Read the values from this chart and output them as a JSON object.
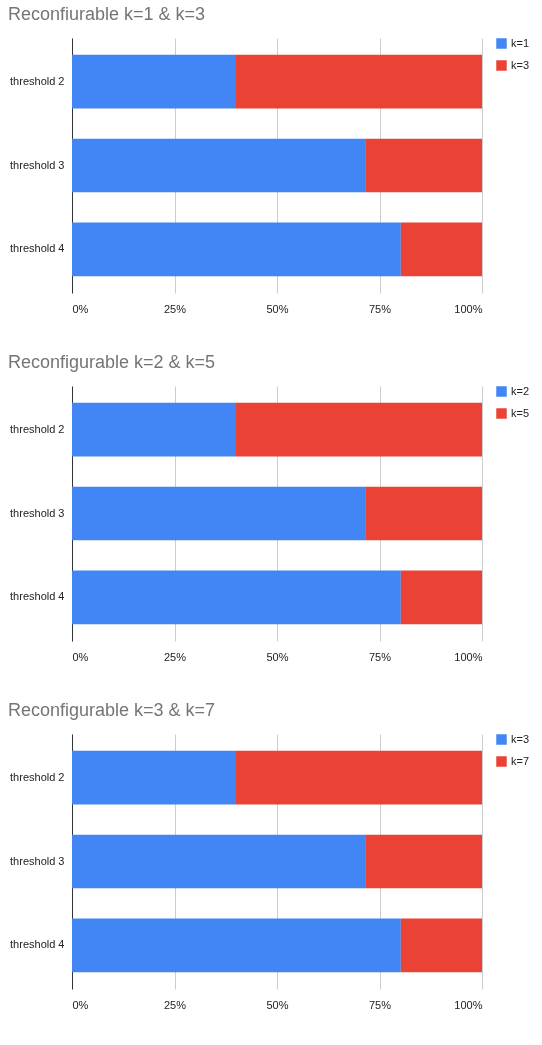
{
  "chart_data": [
    {
      "type": "bar",
      "orientation": "horizontal",
      "stacked": true,
      "title": "Reconfiurable k=1 & k=3",
      "categories": [
        "threshold 2",
        "threshold 3",
        "threshold 4"
      ],
      "series": [
        {
          "name": "k=1",
          "color": "#4285f4",
          "values": [
            40,
            71.5,
            80.2
          ]
        },
        {
          "name": "k=3",
          "color": "#ea4335",
          "values": [
            60,
            28.5,
            19.8
          ]
        }
      ],
      "xlim": [
        0,
        100
      ],
      "xticks": [
        {
          "value": 0,
          "label": "0%"
        },
        {
          "value": 25,
          "label": "25%"
        },
        {
          "value": 50,
          "label": "50%"
        },
        {
          "value": 75,
          "label": "75%"
        },
        {
          "value": 100,
          "label": "100%"
        }
      ],
      "grid": "x",
      "legend": "top right"
    },
    {
      "type": "bar",
      "orientation": "horizontal",
      "stacked": true,
      "title": "Reconfigurable k=2 & k=5",
      "categories": [
        "threshold 2",
        "threshold 3",
        "threshold 4"
      ],
      "series": [
        {
          "name": "k=2",
          "color": "#4285f4",
          "values": [
            40,
            71.5,
            80.2
          ]
        },
        {
          "name": "k=5",
          "color": "#ea4335",
          "values": [
            60,
            28.5,
            19.8
          ]
        }
      ],
      "xlim": [
        0,
        100
      ],
      "xticks": [
        {
          "value": 0,
          "label": "0%"
        },
        {
          "value": 25,
          "label": "25%"
        },
        {
          "value": 50,
          "label": "50%"
        },
        {
          "value": 75,
          "label": "75%"
        },
        {
          "value": 100,
          "label": "100%"
        }
      ],
      "grid": "x",
      "legend": "top right"
    },
    {
      "type": "bar",
      "orientation": "horizontal",
      "stacked": true,
      "title": "Reconfigurable k=3 & k=7",
      "categories": [
        "threshold 2",
        "threshold 3",
        "threshold 4"
      ],
      "series": [
        {
          "name": "k=3",
          "color": "#4285f4",
          "values": [
            40,
            71.5,
            80.2
          ]
        },
        {
          "name": "k=7",
          "color": "#ea4335",
          "values": [
            60,
            28.5,
            19.8
          ]
        }
      ],
      "xlim": [
        0,
        100
      ],
      "xticks": [
        {
          "value": 0,
          "label": "0%"
        },
        {
          "value": 25,
          "label": "25%"
        },
        {
          "value": 50,
          "label": "50%"
        },
        {
          "value": 75,
          "label": "75%"
        },
        {
          "value": 100,
          "label": "100%"
        }
      ],
      "grid": "x",
      "legend": "top right"
    }
  ]
}
